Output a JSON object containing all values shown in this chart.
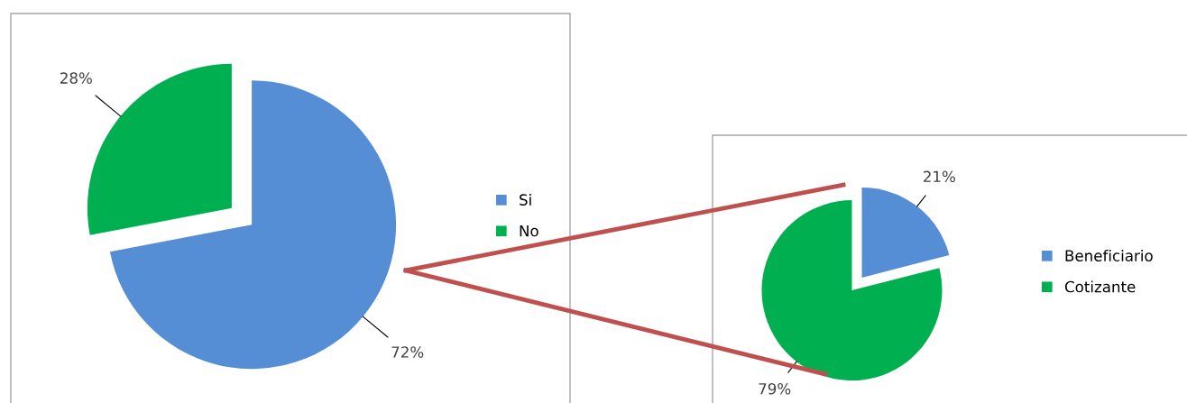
{
  "chart_data": [
    {
      "type": "pie",
      "categories": [
        "Si",
        "No"
      ],
      "values": [
        72,
        28
      ],
      "colors": [
        "#558ed5",
        "#00b050"
      ],
      "value_labels": [
        "72%",
        "28%"
      ],
      "legend": "right"
    },
    {
      "type": "pie",
      "categories": [
        "Beneficiario",
        "Cotizante"
      ],
      "values": [
        21,
        79
      ],
      "colors": [
        "#558ed5",
        "#00b050"
      ],
      "value_labels": [
        "21%",
        "79%"
      ],
      "legend": "right"
    }
  ]
}
